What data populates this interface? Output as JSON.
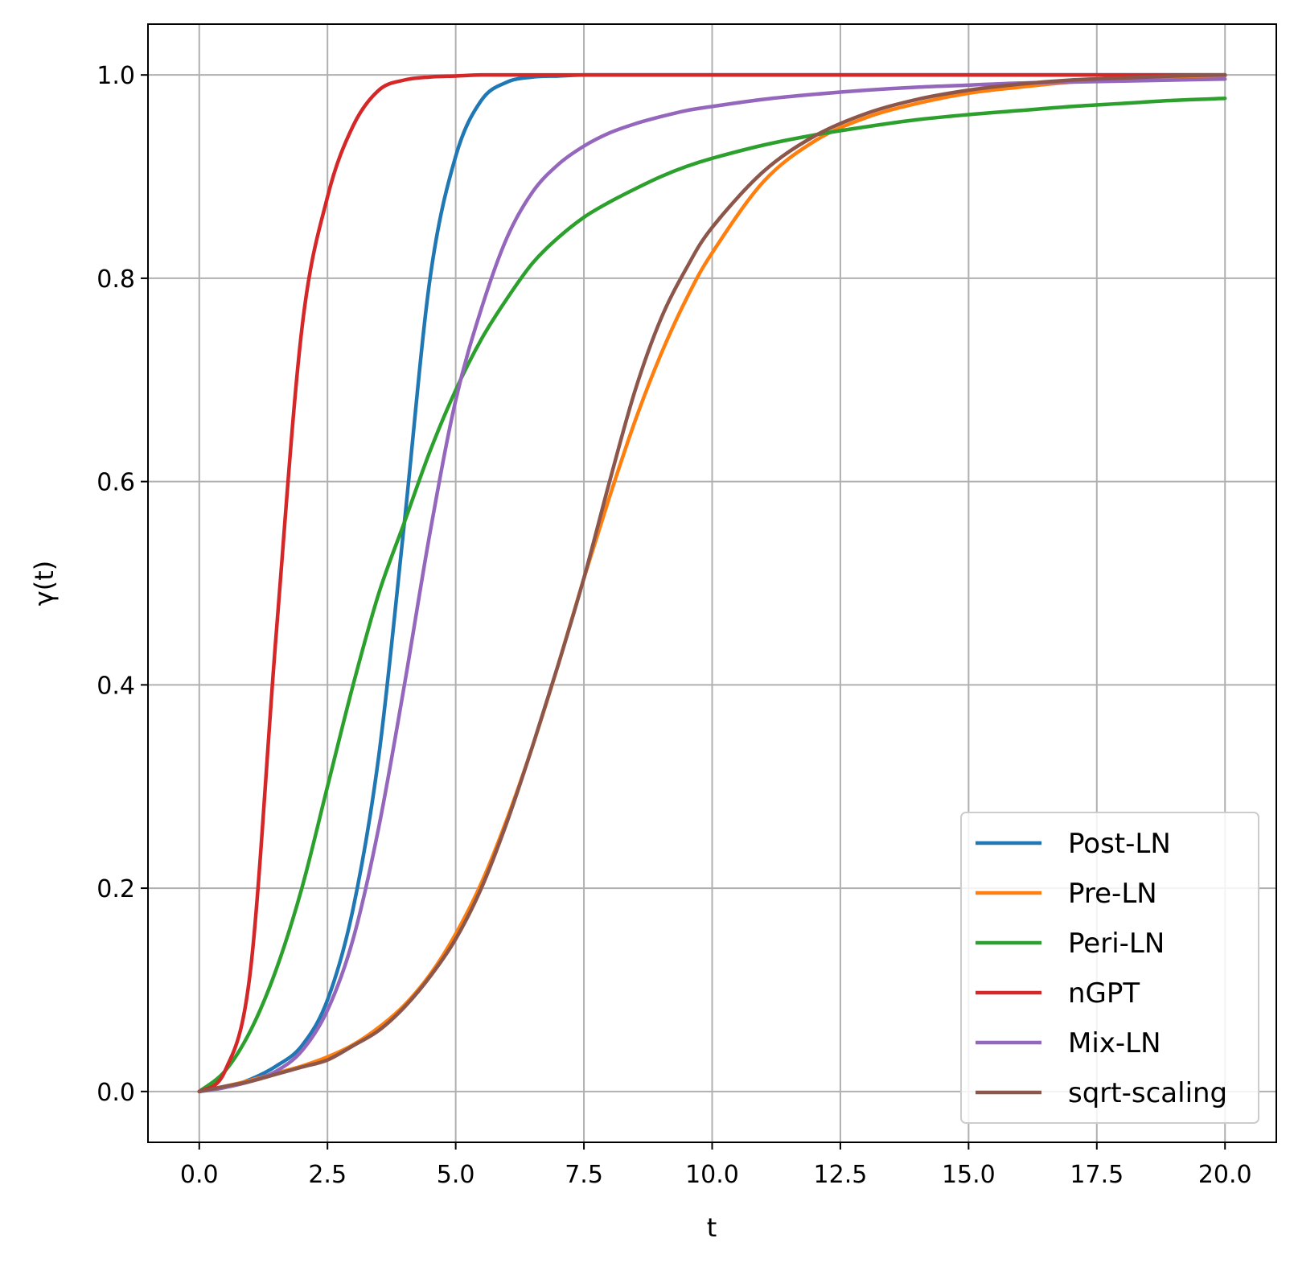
{
  "chart_data": {
    "type": "line",
    "xlabel": "t",
    "ylabel": "γ(t)",
    "xlim": [
      -1.0,
      21.0
    ],
    "ylim": [
      -0.05,
      1.05
    ],
    "xticks": [
      "0.0",
      "2.5",
      "5.0",
      "7.5",
      "10.0",
      "12.5",
      "15.0",
      "17.5",
      "20.0"
    ],
    "yticks": [
      "0.0",
      "0.2",
      "0.4",
      "0.6",
      "0.8",
      "1.0"
    ],
    "grid": true,
    "legend_position": "bottom-right",
    "x": [
      0,
      0.5,
      1,
      1.5,
      2,
      2.5,
      3,
      3.5,
      4,
      4.5,
      5,
      5.5,
      6,
      6.5,
      7,
      7.5,
      8,
      8.5,
      9,
      9.5,
      10,
      11,
      12,
      13,
      14,
      15,
      16,
      17,
      18,
      19,
      20
    ],
    "series": [
      {
        "name": "Post-LN",
        "color": "#1f77b4",
        "values": [
          0,
          0.004,
          0.012,
          0.025,
          0.045,
          0.09,
          0.18,
          0.33,
          0.56,
          0.8,
          0.92,
          0.975,
          0.993,
          0.998,
          0.999,
          1.0,
          1.0,
          1.0,
          1.0,
          1.0,
          1.0,
          1.0,
          1.0,
          1.0,
          1.0,
          1.0,
          1.0,
          1.0,
          1.0,
          1.0,
          1.0
        ]
      },
      {
        "name": "Pre-LN",
        "color": "#ff7f0e",
        "values": [
          0,
          0.005,
          0.011,
          0.018,
          0.025,
          0.034,
          0.046,
          0.063,
          0.085,
          0.115,
          0.155,
          0.205,
          0.268,
          0.34,
          0.42,
          0.505,
          0.585,
          0.66,
          0.725,
          0.78,
          0.825,
          0.895,
          0.935,
          0.958,
          0.972,
          0.982,
          0.988,
          0.993,
          0.996,
          0.998,
          0.999
        ]
      },
      {
        "name": "Peri-LN",
        "color": "#2ca02c",
        "values": [
          0,
          0.02,
          0.06,
          0.12,
          0.2,
          0.3,
          0.4,
          0.49,
          0.56,
          0.63,
          0.69,
          0.74,
          0.78,
          0.815,
          0.84,
          0.86,
          0.875,
          0.888,
          0.9,
          0.91,
          0.918,
          0.931,
          0.941,
          0.949,
          0.956,
          0.961,
          0.965,
          0.969,
          0.972,
          0.975,
          0.977
        ]
      },
      {
        "name": "nGPT",
        "color": "#d62728",
        "values": [
          0,
          0.02,
          0.12,
          0.45,
          0.75,
          0.88,
          0.95,
          0.985,
          0.995,
          0.998,
          0.999,
          1.0,
          1.0,
          1.0,
          1.0,
          1.0,
          1.0,
          1.0,
          1.0,
          1.0,
          1.0,
          1.0,
          1.0,
          1.0,
          1.0,
          1.0,
          1.0,
          1.0,
          1.0,
          1.0,
          1.0
        ]
      },
      {
        "name": "Mix-LN",
        "color": "#9467bd",
        "values": [
          0,
          0.004,
          0.01,
          0.02,
          0.04,
          0.08,
          0.15,
          0.26,
          0.4,
          0.55,
          0.68,
          0.77,
          0.84,
          0.885,
          0.912,
          0.93,
          0.943,
          0.952,
          0.959,
          0.965,
          0.969,
          0.976,
          0.981,
          0.985,
          0.988,
          0.99,
          0.992,
          0.993,
          0.994,
          0.995,
          0.996
        ]
      },
      {
        "name": "sqrt-scaling",
        "color": "#8c564b",
        "values": [
          0,
          0.005,
          0.01,
          0.017,
          0.024,
          0.031,
          0.045,
          0.06,
          0.083,
          0.113,
          0.15,
          0.2,
          0.265,
          0.34,
          0.42,
          0.505,
          0.6,
          0.69,
          0.76,
          0.81,
          0.85,
          0.905,
          0.94,
          0.962,
          0.976,
          0.985,
          0.991,
          0.995,
          0.997,
          0.999,
          1.0
        ]
      }
    ]
  }
}
